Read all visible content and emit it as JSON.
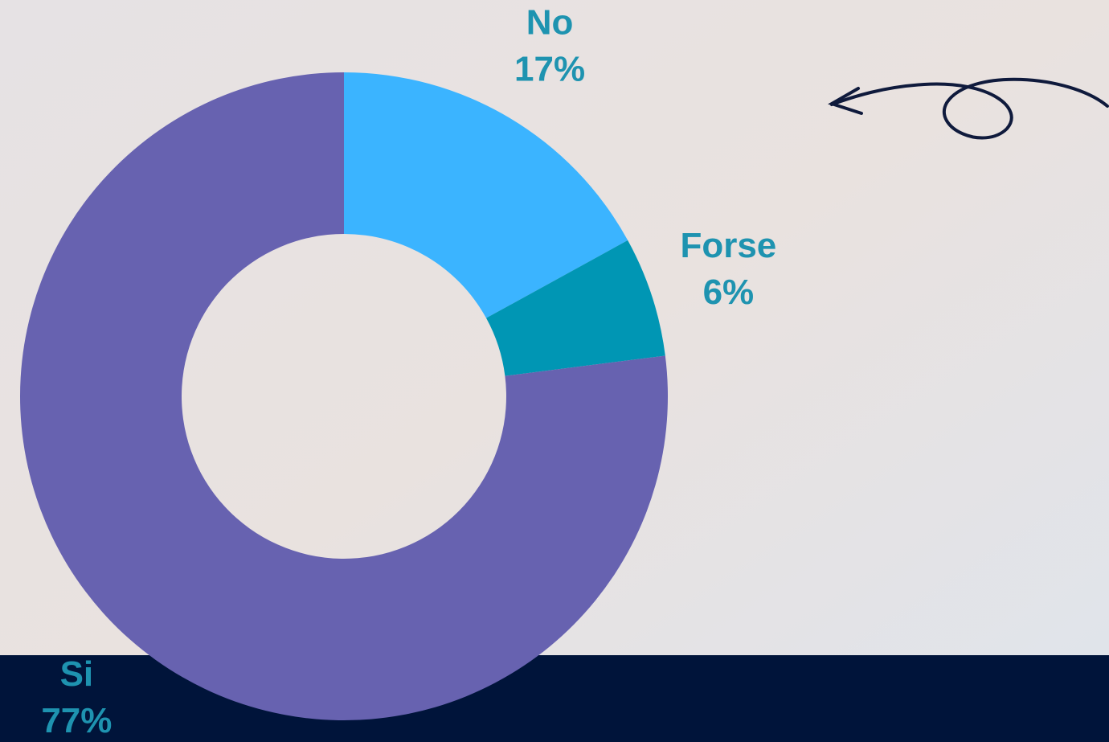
{
  "chart_data": {
    "type": "pie",
    "donut": true,
    "categories": [
      "No",
      "Forse",
      "Si"
    ],
    "values": [
      17,
      6,
      77
    ],
    "value_labels": [
      "17%",
      "6%",
      "77%"
    ],
    "colors": [
      "#3bb4ff",
      "#0096b4",
      "#6762b0"
    ]
  }
}
